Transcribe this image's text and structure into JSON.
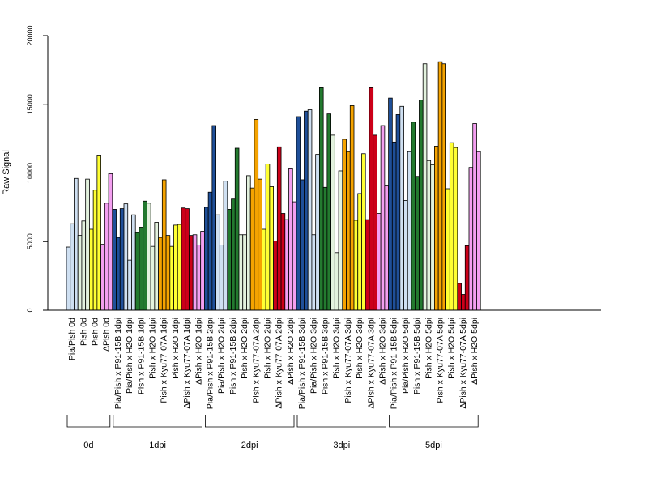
{
  "chart_data": {
    "type": "bar",
    "ylabel": "Raw Signal",
    "ylim": [
      0,
      20000
    ],
    "yticks": [
      0,
      5000,
      10000,
      15000,
      20000
    ],
    "grid": false,
    "bars_per_group": 3,
    "groups": [
      {
        "label": "Pia/Pish 0d",
        "color": "#cfe0f2",
        "values": [
          4600,
          6300,
          9600
        ]
      },
      {
        "label": "Pish 0d",
        "color": "#e3f2de",
        "values": [
          5450,
          6500,
          9550
        ]
      },
      {
        "label": "Pish 0d",
        "color": "#ffff33",
        "values": [
          5900,
          8750,
          11300
        ]
      },
      {
        "label": "ΔPish 0d",
        "color": "#f39ff0",
        "values": [
          4800,
          7800,
          9950
        ]
      },
      {
        "label": "Pia/Pish x P91-15B 1dpi",
        "color": "#1f4f99",
        "values": [
          7350,
          5300,
          7400
        ]
      },
      {
        "label": "Pia/Pish x H2O 1dpi",
        "color": "#cfe0f2",
        "values": [
          7750,
          3650,
          6950
        ]
      },
      {
        "label": "Pish x P91-15B 1dpi",
        "color": "#237a2f",
        "values": [
          5650,
          6050,
          7950
        ]
      },
      {
        "label": "Pish x H2O 1dpi",
        "color": "#e3f2de",
        "values": [
          7800,
          4650,
          6400
        ]
      },
      {
        "label": "Pish x Kyu77-07A 1dpi",
        "color": "#f5a300",
        "values": [
          5300,
          9500,
          5450
        ]
      },
      {
        "label": "Pish x H2O 1dpi",
        "color": "#ffff33",
        "values": [
          4650,
          6200,
          6250
        ]
      },
      {
        "label": "ΔPish x Kyu77-07A 1dpi",
        "color": "#cc0019",
        "values": [
          7450,
          7400,
          5450
        ]
      },
      {
        "label": "ΔPish x H2O 1dpi",
        "color": "#f39ff0",
        "values": [
          5500,
          4750,
          5750
        ]
      },
      {
        "label": "Pia/Pish x P91-15B 2dpi",
        "color": "#1f4f99",
        "values": [
          7500,
          8600,
          13450
        ]
      },
      {
        "label": "Pia/Pish x H2O 2dpi",
        "color": "#cfe0f2",
        "values": [
          6950,
          4750,
          9400
        ]
      },
      {
        "label": "Pish x P91-15B 2dpi",
        "color": "#237a2f",
        "values": [
          7350,
          8100,
          11800
        ]
      },
      {
        "label": "Pish x H2O 2dpi",
        "color": "#e3f2de",
        "values": [
          5500,
          5500,
          9800
        ]
      },
      {
        "label": "Pish x Kyu77-07A 2dpi",
        "color": "#f5a300",
        "values": [
          8900,
          13900,
          9550
        ]
      },
      {
        "label": "Pish x H2O 2dpi",
        "color": "#ffff33",
        "values": [
          5900,
          10650,
          9000
        ]
      },
      {
        "label": "ΔPish x Kyu77-07A 2dpi",
        "color": "#cc0019",
        "values": [
          5050,
          11900,
          7050
        ]
      },
      {
        "label": "ΔPish x H2O 2dpi",
        "color": "#f39ff0",
        "values": [
          6600,
          10300,
          7900
        ]
      },
      {
        "label": "Pia/Pish x P91-15B 3dpi",
        "color": "#1f4f99",
        "values": [
          14100,
          9500,
          14500
        ]
      },
      {
        "label": "Pia/Pish x H2O 3dpi",
        "color": "#cfe0f2",
        "values": [
          14600,
          5500,
          11350
        ]
      },
      {
        "label": "Pish x P91-15B 3dpi",
        "color": "#237a2f",
        "values": [
          16200,
          8950,
          14300
        ]
      },
      {
        "label": "Pish x H2O 3dpi",
        "color": "#e3f2de",
        "values": [
          12750,
          4200,
          10150
        ]
      },
      {
        "label": "Pish x Kyu77-07A 3dpi",
        "color": "#f5a300",
        "values": [
          12450,
          11550,
          14900
        ]
      },
      {
        "label": "Pish x H2O 3dpi",
        "color": "#ffff33",
        "values": [
          6550,
          8500,
          11400
        ]
      },
      {
        "label": "ΔPish x Kyu77-07A 3dpi",
        "color": "#cc0019",
        "values": [
          6600,
          16200,
          12750
        ]
      },
      {
        "label": "ΔPish x H2O 3dpi",
        "color": "#f39ff0",
        "values": [
          7050,
          13450,
          9050
        ]
      },
      {
        "label": "Pia/Pish x P91-15B 5dpi",
        "color": "#1f4f99",
        "values": [
          15450,
          12250,
          14250
        ]
      },
      {
        "label": "Pia/Pish x H2O 5dpi",
        "color": "#cfe0f2",
        "values": [
          14850,
          8000,
          11550
        ]
      },
      {
        "label": "Pish x P91-15B 5dpi",
        "color": "#237a2f",
        "values": [
          13700,
          9750,
          15300
        ]
      },
      {
        "label": "Pish x H2O 5dpi",
        "color": "#e3f2de",
        "values": [
          17950,
          10900,
          10600
        ]
      },
      {
        "label": "Pish x Kyu77-07A 5dpi",
        "color": "#f5a300",
        "values": [
          11950,
          18100,
          17950
        ]
      },
      {
        "label": "Pish x H2O 5dpi",
        "color": "#ffff33",
        "values": [
          8850,
          12200,
          11850
        ]
      },
      {
        "label": "ΔPish x Kyu77-07A 5dpi",
        "color": "#cc0019",
        "values": [
          1950,
          1150,
          4700
        ]
      },
      {
        "label": "ΔPish x H2O 5dpi",
        "color": "#f39ff0",
        "values": [
          10400,
          13600,
          11550
        ]
      }
    ],
    "time_brackets": [
      {
        "label": "0d",
        "first_group": 0,
        "last_group": 3
      },
      {
        "label": "1dpi",
        "first_group": 4,
        "last_group": 11
      },
      {
        "label": "2dpi",
        "first_group": 12,
        "last_group": 19
      },
      {
        "label": "3dpi",
        "first_group": 20,
        "last_group": 27
      },
      {
        "label": "5dpi",
        "first_group": 28,
        "last_group": 35
      }
    ]
  }
}
